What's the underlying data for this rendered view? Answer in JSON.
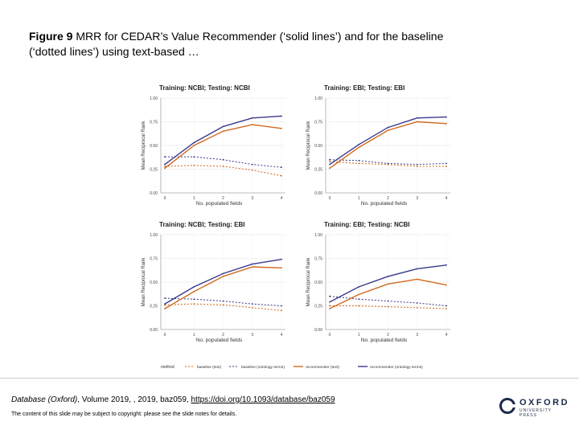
{
  "caption": {
    "label": "Figure 9",
    "text": " MRR for CEDAR’s Value Recommender (‘solid lines’) and for the baseline (‘dotted lines’) using text-based …"
  },
  "citation": {
    "journal": "Database (Oxford)",
    "details": ", Volume 2019, , 2019, baz059, ",
    "doi": "https://doi.org/10.1093/database/baz059"
  },
  "copyright": "The content of this slide may be subject to copyright: please see the slide notes for details.",
  "logo": {
    "word": "OXFORD",
    "sub": "UNIVERSITY PRESS"
  },
  "colors": {
    "recommender": "#d2691e",
    "recommender_ontology": "#3a3a8c",
    "baseline": "#d2691e",
    "baseline_ontology": "#3a3a8c"
  },
  "chart_data": [
    {
      "type": "line",
      "title": "Training: NCBI; Testing: NCBI",
      "xlabel": "No. populated fields",
      "ylabel": "Mean Reciprocal Rank",
      "x": [
        0,
        1,
        2,
        3,
        4
      ],
      "ylim": [
        0,
        1
      ],
      "yticks": [
        "0.00",
        "0.25",
        "0.50",
        "0.75",
        "1.00"
      ],
      "series": [
        {
          "name": "baseline (text)",
          "style": "dotted",
          "color": "#d2691e",
          "values": [
            0.28,
            0.29,
            0.28,
            0.24,
            0.18
          ]
        },
        {
          "name": "baseline (ontology terms)",
          "style": "dotted",
          "color": "#3a3a8c",
          "values": [
            0.38,
            0.38,
            0.35,
            0.3,
            0.27
          ]
        },
        {
          "name": "recommender (text)",
          "style": "solid",
          "color": "#d2691e",
          "values": [
            0.26,
            0.5,
            0.65,
            0.72,
            0.68
          ]
        },
        {
          "name": "recommender (ontology terms)",
          "style": "solid",
          "color": "#3a3a8c",
          "values": [
            0.3,
            0.53,
            0.7,
            0.79,
            0.81
          ]
        }
      ]
    },
    {
      "type": "line",
      "title": "Training: EBI; Testing: EBI",
      "xlabel": "No. populated fields",
      "ylabel": "Mean Reciprocal Rank",
      "x": [
        0,
        1,
        2,
        3,
        4
      ],
      "ylim": [
        0,
        1
      ],
      "yticks": [
        "0.00",
        "0.25",
        "0.50",
        "0.75",
        "1.00"
      ],
      "series": [
        {
          "name": "baseline (text)",
          "style": "dotted",
          "color": "#d2691e",
          "values": [
            0.33,
            0.31,
            0.3,
            0.28,
            0.28
          ]
        },
        {
          "name": "baseline (ontology terms)",
          "style": "dotted",
          "color": "#3a3a8c",
          "values": [
            0.35,
            0.34,
            0.31,
            0.3,
            0.31
          ]
        },
        {
          "name": "recommender (text)",
          "style": "solid",
          "color": "#d2691e",
          "values": [
            0.26,
            0.48,
            0.66,
            0.75,
            0.73
          ]
        },
        {
          "name": "recommender (ontology terms)",
          "style": "solid",
          "color": "#3a3a8c",
          "values": [
            0.3,
            0.51,
            0.69,
            0.79,
            0.8
          ]
        }
      ]
    },
    {
      "type": "line",
      "title": "Training: NCBI; Testing: EBI",
      "xlabel": "No. populated fields",
      "ylabel": "Mean Reciprocal Rank",
      "x": [
        0,
        1,
        2,
        3,
        4
      ],
      "ylim": [
        0,
        1
      ],
      "yticks": [
        "0.00",
        "0.25",
        "0.50",
        "0.75",
        "1.00"
      ],
      "series": [
        {
          "name": "baseline (text)",
          "style": "dotted",
          "color": "#d2691e",
          "values": [
            0.26,
            0.27,
            0.26,
            0.23,
            0.2
          ]
        },
        {
          "name": "baseline (ontology terms)",
          "style": "dotted",
          "color": "#3a3a8c",
          "values": [
            0.33,
            0.32,
            0.3,
            0.27,
            0.25
          ]
        },
        {
          "name": "recommender (text)",
          "style": "solid",
          "color": "#d2691e",
          "values": [
            0.22,
            0.4,
            0.56,
            0.66,
            0.65
          ]
        },
        {
          "name": "recommender (ontology terms)",
          "style": "solid",
          "color": "#3a3a8c",
          "values": [
            0.27,
            0.45,
            0.59,
            0.69,
            0.74
          ]
        }
      ]
    },
    {
      "type": "line",
      "title": "Training: EBI; Testing: NCBI",
      "xlabel": "No. populated fields",
      "ylabel": "Mean Reciprocal Rank",
      "x": [
        0,
        1,
        2,
        3,
        4
      ],
      "ylim": [
        0,
        1
      ],
      "yticks": [
        "0.00",
        "0.25",
        "0.50",
        "0.75",
        "1.00"
      ],
      "series": [
        {
          "name": "baseline (text)",
          "style": "dotted",
          "color": "#d2691e",
          "values": [
            0.25,
            0.25,
            0.24,
            0.23,
            0.22
          ]
        },
        {
          "name": "baseline (ontology terms)",
          "style": "dotted",
          "color": "#3a3a8c",
          "values": [
            0.35,
            0.32,
            0.3,
            0.28,
            0.25
          ]
        },
        {
          "name": "recommender (text)",
          "style": "solid",
          "color": "#d2691e",
          "values": [
            0.22,
            0.37,
            0.48,
            0.53,
            0.47
          ]
        },
        {
          "name": "recommender (ontology terms)",
          "style": "solid",
          "color": "#3a3a8c",
          "values": [
            0.29,
            0.45,
            0.56,
            0.64,
            0.68
          ]
        }
      ]
    }
  ],
  "legend": {
    "title": "method",
    "items": [
      {
        "label": "baseline (text)",
        "style": "dotted",
        "color": "#d2691e"
      },
      {
        "label": "baseline (ontology terms)",
        "style": "dotted",
        "color": "#3a3a8c"
      },
      {
        "label": "recommender (text)",
        "style": "solid",
        "color": "#d2691e"
      },
      {
        "label": "recommender (ontology terms)",
        "style": "solid",
        "color": "#3a3a8c"
      }
    ]
  }
}
